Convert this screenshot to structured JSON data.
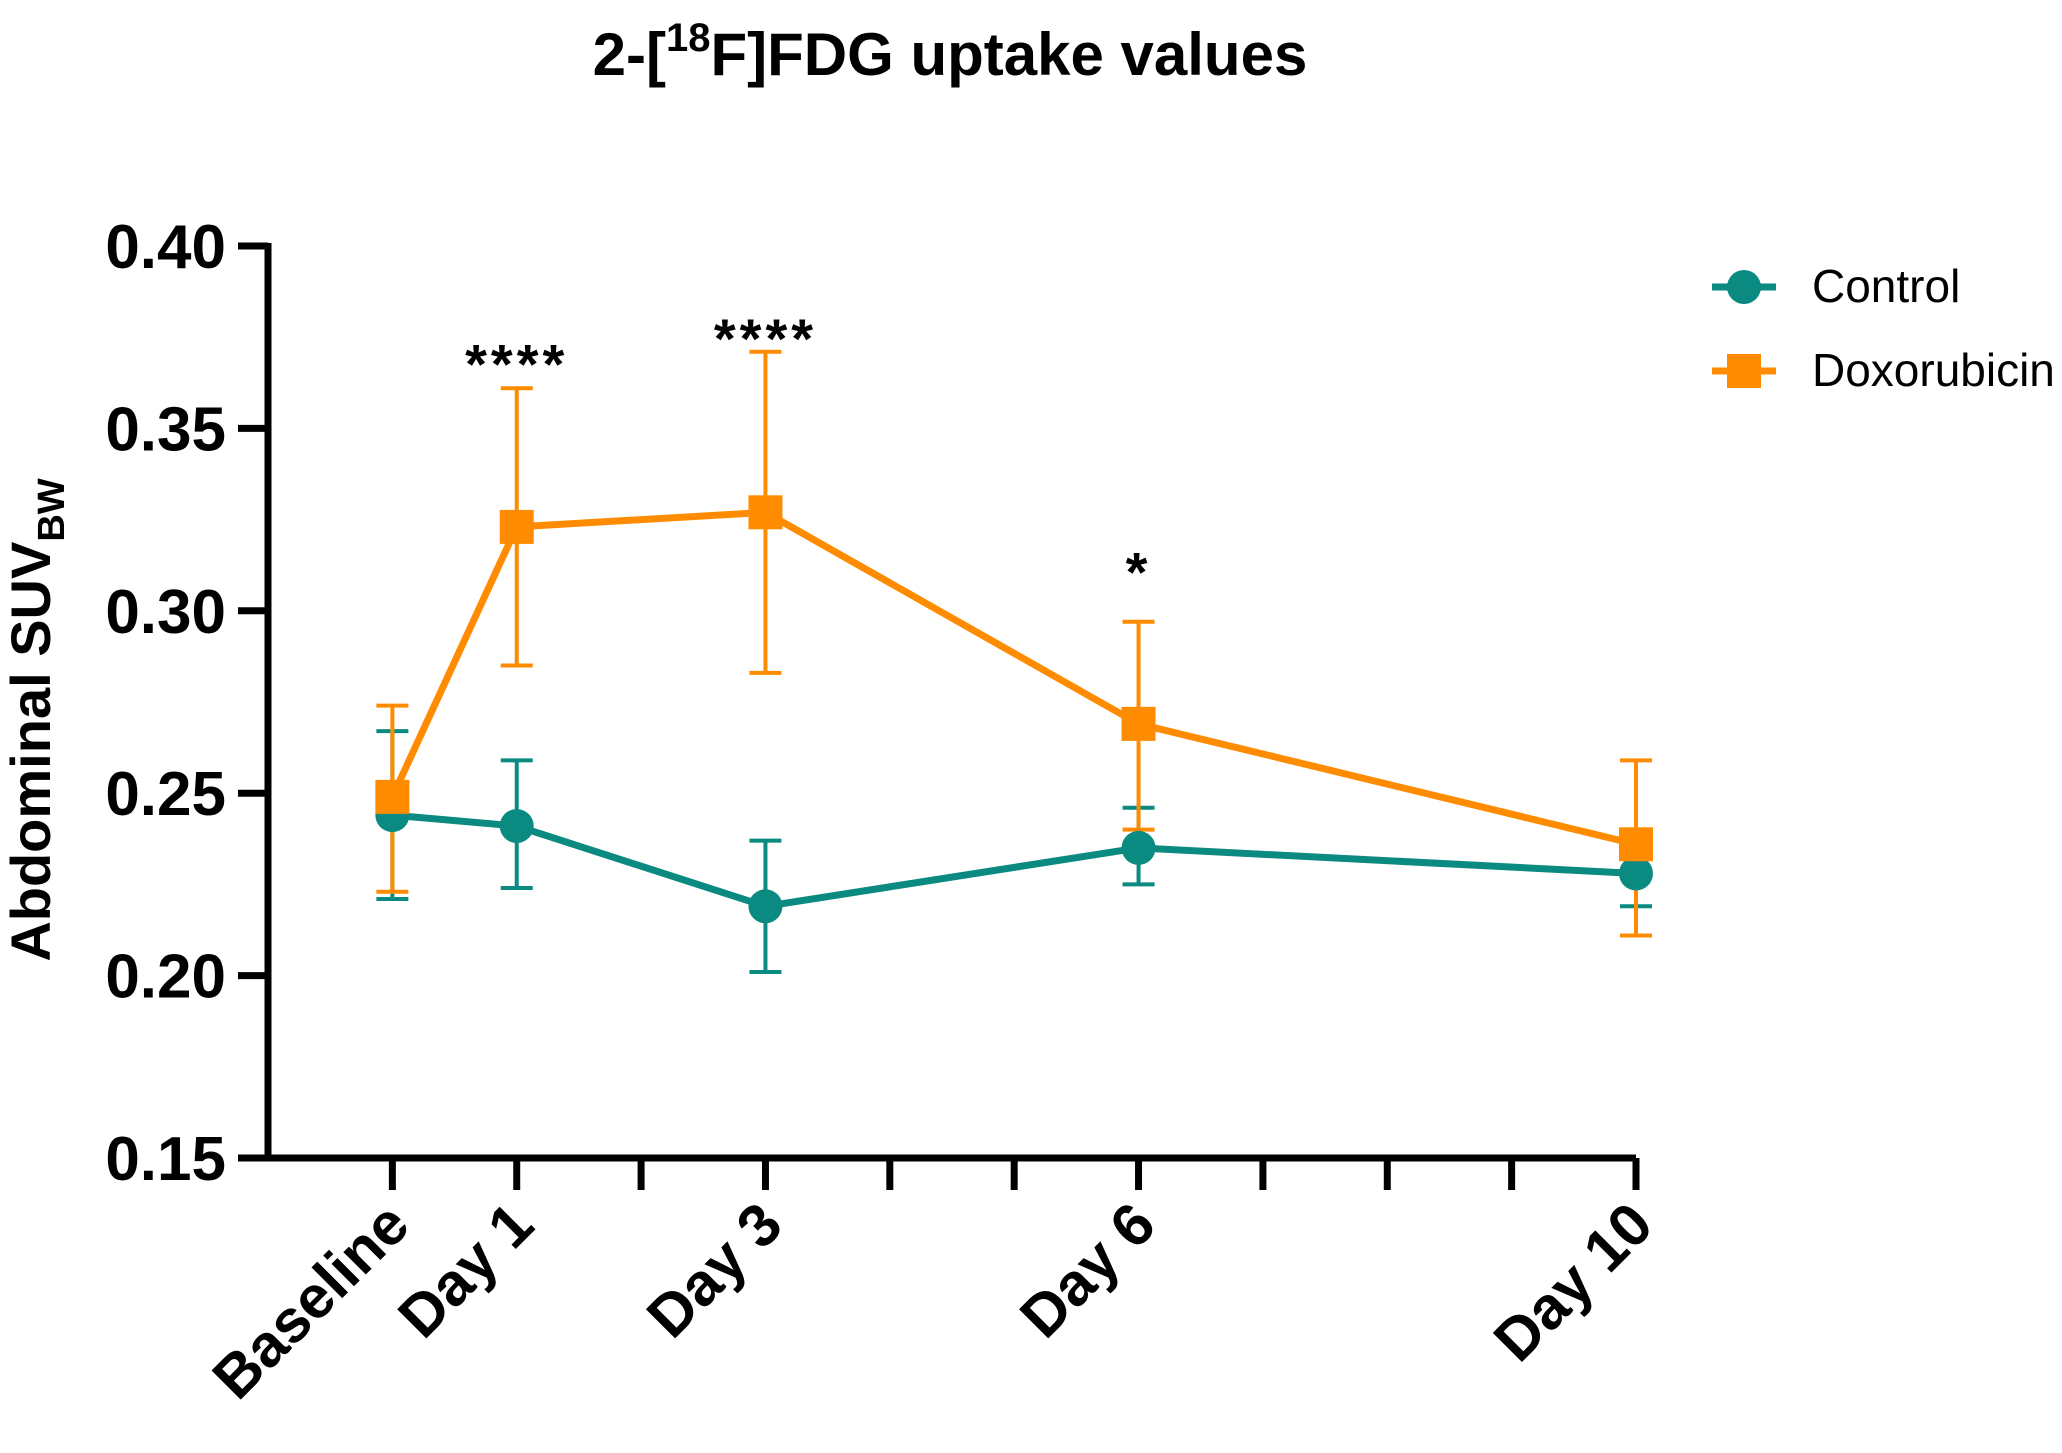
{
  "chart_data": {
    "type": "line",
    "title": {
      "prefix": "2-[",
      "superscript": "18",
      "suffix": "F]FDG uptake values"
    },
    "ylabel": {
      "main": "Abdominal SUV",
      "subscript": "BW"
    },
    "xlabel": "",
    "ylim": [
      0.15,
      0.4
    ],
    "yticks": [
      0.15,
      0.2,
      0.25,
      0.3,
      0.35,
      0.4
    ],
    "ytick_labels": [
      "0.15",
      "0.20",
      "0.25",
      "0.30",
      "0.35",
      "0.40"
    ],
    "x_domain": [
      -1,
      10
    ],
    "x_minor_ticks": [
      -1,
      0,
      1,
      2,
      3,
      4,
      5,
      6,
      7,
      8,
      9,
      10
    ],
    "categories": [
      "Baseline",
      "Day 1",
      "Day 3",
      "Day 6",
      "Day 10"
    ],
    "x": [
      0,
      1,
      3,
      6,
      10
    ],
    "series": [
      {
        "name": "Control",
        "color": "#0a8a80",
        "marker": "circle",
        "values": [
          0.244,
          0.241,
          0.219,
          0.235,
          0.228
        ],
        "err_upper": [
          0.267,
          0.259,
          0.237,
          0.246,
          0.236
        ],
        "err_lower": [
          0.221,
          0.224,
          0.201,
          0.225,
          0.219
        ]
      },
      {
        "name": "Doxorubicin",
        "color": "#ff8c00",
        "marker": "square",
        "values": [
          0.249,
          0.323,
          0.327,
          0.269,
          0.236
        ],
        "err_upper": [
          0.274,
          0.361,
          0.371,
          0.297,
          0.259
        ],
        "err_lower": [
          0.223,
          0.285,
          0.283,
          0.24,
          0.211
        ]
      }
    ],
    "annotations": [
      {
        "x": 1,
        "y": 0.37,
        "text": "****"
      },
      {
        "x": 3,
        "y": 0.377,
        "text": "****"
      },
      {
        "x": 6,
        "y": 0.313,
        "text": "*"
      }
    ],
    "legend": {
      "position": "top-right"
    },
    "grid": false
  }
}
